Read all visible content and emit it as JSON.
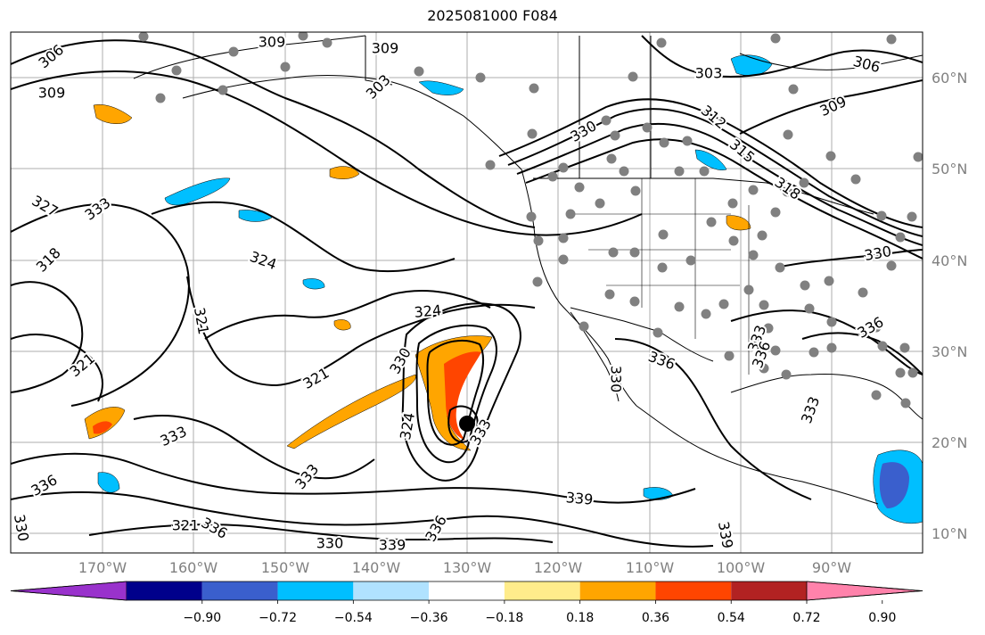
{
  "title": "2025081000 F084",
  "chart_data": {
    "type": "map",
    "title": "2025081000 F084",
    "lon_ticks": [
      "170°W",
      "160°W",
      "150°W",
      "140°W",
      "130°W",
      "120°W",
      "110°W",
      "100°W",
      "90°W"
    ],
    "lat_ticks": [
      "60°N",
      "50°N",
      "40°N",
      "30°N",
      "20°N",
      "10°N"
    ],
    "colorbar": {
      "ticks": [
        "−0.90",
        "−0.72",
        "−0.54",
        "−0.36",
        "−0.18",
        "0.18",
        "0.36",
        "0.54",
        "0.72",
        "0.90"
      ],
      "colors": [
        "#9932cc",
        "#00008b",
        "#3a5fcd",
        "#00bfff",
        "#b0e2ff",
        "#ffffff",
        "#ffec8b",
        "#ffa500",
        "#ff4500",
        "#b22222",
        "#ff82ab"
      ]
    },
    "contour_labels": [
      "306",
      "309",
      "309",
      "309",
      "303",
      "303",
      "306",
      "309",
      "312",
      "315",
      "318",
      "330",
      "333",
      "327",
      "318",
      "324",
      "321",
      "324",
      "321",
      "330",
      "321",
      "333",
      "336",
      "324",
      "333",
      "339",
      "336",
      "330",
      "333",
      "336",
      "336",
      "333",
      "330",
      "339",
      "336",
      "333",
      "321",
      "336",
      "330",
      "339",
      "330"
    ],
    "center_marker": "storm center"
  }
}
